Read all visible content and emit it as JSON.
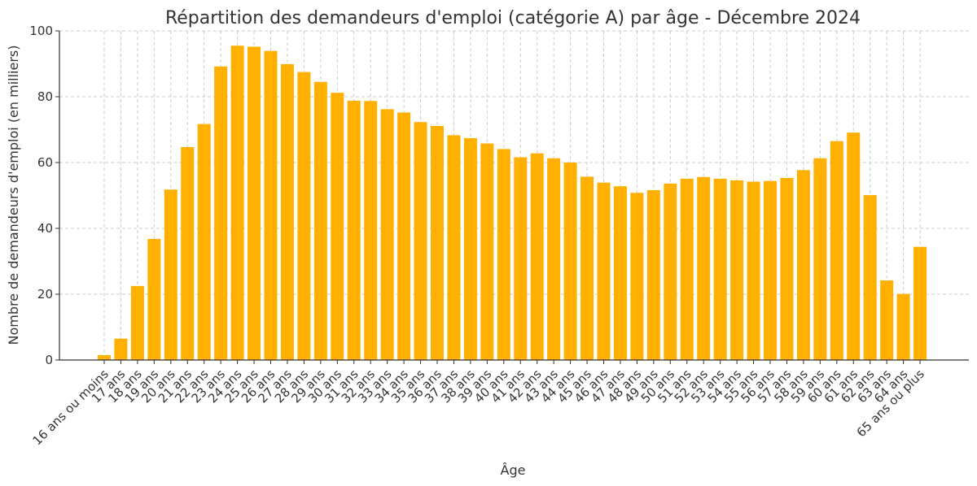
{
  "chart_data": {
    "type": "bar",
    "title": "Répartition des demandeurs d'emploi (catégorie A) par âge - Décembre 2024",
    "xlabel": "Âge",
    "ylabel": "Nombre de demandeurs d'emploi (en milliers)",
    "ylim": [
      0,
      100
    ],
    "yticks": [
      "0",
      "20",
      "40",
      "60",
      "80",
      "100"
    ],
    "grid": true,
    "bar_color": "#FFB000",
    "categories": [
      "16  ans ou moins",
      "17 ans",
      "18 ans",
      "19 ans",
      "20 ans",
      "21 ans",
      "22 ans",
      "23 ans",
      "24 ans",
      "25 ans",
      "26 ans",
      "27 ans",
      "28 ans",
      "29 ans",
      "30 ans",
      "31 ans",
      "32 ans",
      "33 ans",
      "34 ans",
      "35 ans",
      "36 ans",
      "37 ans",
      "38 ans",
      "39 ans",
      "40 ans",
      "41 ans",
      "42 ans",
      "43 ans",
      "44 ans",
      "45 ans",
      "46 ans",
      "47 ans",
      "48 ans",
      "49 ans",
      "50 ans",
      "51 ans",
      "52 ans",
      "53 ans",
      "54 ans",
      "55 ans",
      "56 ans",
      "57 ans",
      "58 ans",
      "59 ans",
      "60 ans",
      "61 ans",
      "62 ans",
      "63 ans",
      "64 ans",
      "65 ans ou plus"
    ],
    "values": [
      1.5,
      6.5,
      22.5,
      36.8,
      51.8,
      64.7,
      71.7,
      89.2,
      95.5,
      95.2,
      93.9,
      89.9,
      87.5,
      84.5,
      81.2,
      78.8,
      78.7,
      76.2,
      75.2,
      72.3,
      71.1,
      68.3,
      67.4,
      65.8,
      64.1,
      61.6,
      62.8,
      61.3,
      60.0,
      55.7,
      53.9,
      52.8,
      50.8,
      51.6,
      53.6,
      55.1,
      55.6,
      55.1,
      54.6,
      54.2,
      54.4,
      55.3,
      57.7,
      61.3,
      66.5,
      69.1,
      50.1,
      24.2,
      20.1,
      34.4
    ]
  }
}
